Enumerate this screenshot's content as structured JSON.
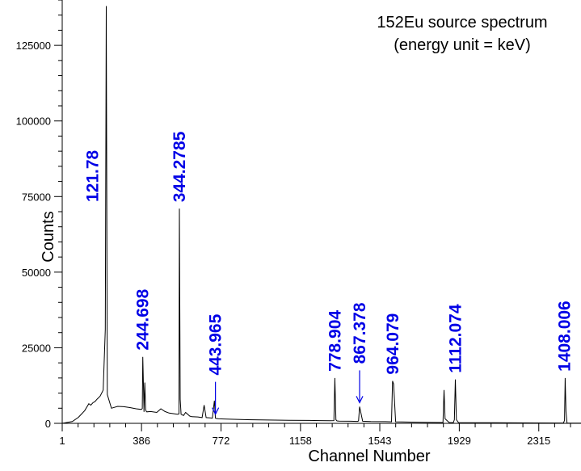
{
  "chart_data": {
    "type": "line",
    "title": "152Eu source spectrum",
    "subtitle": "(energy unit = keV)",
    "xlabel": "Channel Number",
    "ylabel": "Counts",
    "xlim": [
      1,
      2520
    ],
    "ylim": [
      0,
      140000
    ],
    "x_ticks": [
      1,
      386,
      772,
      1158,
      1543,
      1929,
      2315
    ],
    "x_tick_labels": [
      "1",
      "386",
      "772",
      "1158",
      "1543",
      "1929",
      "2315"
    ],
    "y_ticks": [
      0,
      25000,
      50000,
      75000,
      100000,
      125000
    ],
    "y_tick_labels": [
      "0",
      "25000",
      "50000",
      "75000",
      "100000",
      "125000"
    ],
    "grid": false,
    "label_color": "#0000e6",
    "line_color": "#000000",
    "series": [
      {
        "x": [
          1,
          50,
          80,
          110,
          130,
          140,
          150,
          160,
          170,
          185,
          200,
          210,
          215,
          220,
          240,
          270,
          300,
          330,
          360,
          385,
          390,
          392,
          395,
          398,
          402,
          406,
          410,
          412,
          430,
          460,
          480,
          500,
          520,
          540,
          560,
          568,
          570,
          574,
          578,
          590,
          600,
          620,
          630,
          660,
          680,
          690,
          700,
          720,
          730,
          740,
          745,
          750,
          760,
          800,
          850,
          900,
          1000,
          1100,
          1200,
          1250,
          1300,
          1320,
          1325,
          1330,
          1335,
          1345,
          1400,
          1435,
          1440,
          1445,
          1460,
          1500,
          1570,
          1600,
          1605,
          1610,
          1620,
          1650,
          1700,
          1760,
          1800,
          1850,
          1855,
          1860,
          1880,
          1900,
          1905,
          1910,
          1915,
          1925,
          2000,
          2100,
          2200,
          2300,
          2435,
          2440,
          2443,
          2447,
          2452,
          2470,
          2520
        ],
        "values": [
          0,
          600,
          2000,
          4200,
          6500,
          6000,
          6800,
          7200,
          8000,
          9000,
          11000,
          31000,
          138000,
          9500,
          5000,
          5600,
          5500,
          5200,
          4800,
          4600,
          4900,
          22000,
          14000,
          3800,
          13500,
          4500,
          3900,
          3800,
          3900,
          3600,
          4800,
          3900,
          3400,
          3200,
          3000,
          3100,
          71000,
          8000,
          3000,
          2600,
          3600,
          2400,
          2200,
          2100,
          1900,
          6000,
          1900,
          1800,
          1700,
          7500,
          1700,
          1600,
          1500,
          1400,
          1300,
          1200,
          1100,
          1000,
          950,
          900,
          850,
          900,
          15000,
          1200,
          800,
          750,
          700,
          650,
          800,
          5500,
          700,
          600,
          550,
          500,
          14000,
          13000,
          500,
          450,
          400,
          350,
          300,
          280,
          11000,
          1500,
          280,
          250,
          1200,
          14500,
          1200,
          250,
          200,
          180,
          150,
          130,
          110,
          1000,
          15000,
          4000,
          100,
          80,
          50
        ]
      }
    ],
    "peaks": [
      {
        "label": "121.78",
        "channel": 215,
        "label_placement": "left"
      },
      {
        "label": "244.698",
        "channel": 392,
        "label_placement": "above"
      },
      {
        "label": "344.2785",
        "channel": 570,
        "label_placement": "above"
      },
      {
        "label": "443.965",
        "channel": 745,
        "label_placement": "above-arrow"
      },
      {
        "label": "778.904",
        "channel": 1325,
        "label_placement": "above"
      },
      {
        "label": "867.378",
        "channel": 1445,
        "label_placement": "above-arrow"
      },
      {
        "label": "964.079",
        "channel": 1605,
        "label_placement": "above"
      },
      {
        "label": "1112.074",
        "channel": 1910,
        "label_placement": "above"
      },
      {
        "label": "1408.006",
        "channel": 2440,
        "label_placement": "above"
      }
    ]
  }
}
